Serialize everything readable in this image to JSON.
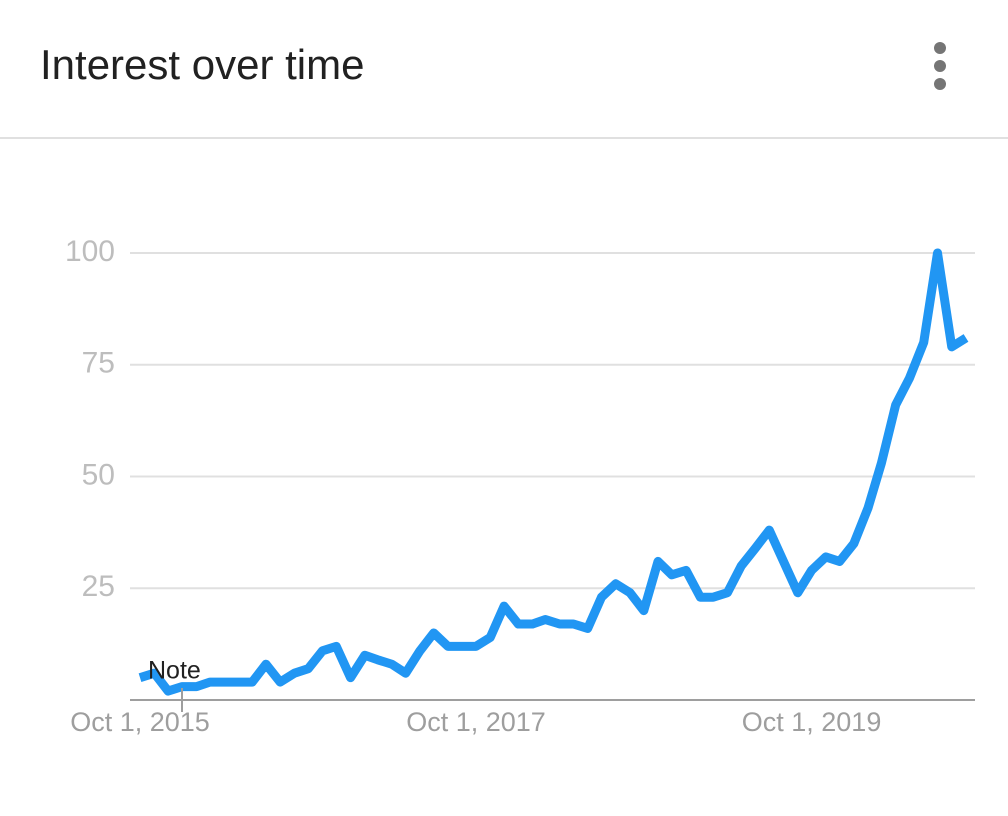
{
  "chart_data": {
    "type": "line",
    "title": "Interest over time",
    "annotation": "Note",
    "x": [
      "2015-10-01",
      "2015-11-01",
      "2015-12-01",
      "2016-01-01",
      "2016-02-01",
      "2016-03-01",
      "2016-04-01",
      "2016-05-01",
      "2016-06-01",
      "2016-07-01",
      "2016-08-01",
      "2016-09-01",
      "2016-10-01",
      "2016-11-01",
      "2016-12-01",
      "2017-01-01",
      "2017-02-01",
      "2017-03-01",
      "2017-04-01",
      "2017-05-01",
      "2017-06-01",
      "2017-07-01",
      "2017-08-01",
      "2017-09-01",
      "2017-10-01",
      "2017-11-01",
      "2017-12-01",
      "2018-01-01",
      "2018-02-01",
      "2018-03-01",
      "2018-04-01",
      "2018-05-01",
      "2018-06-01",
      "2018-07-01",
      "2018-08-01",
      "2018-09-01",
      "2018-10-01",
      "2018-11-01",
      "2018-12-01",
      "2019-01-01",
      "2019-02-01",
      "2019-03-01",
      "2019-04-01",
      "2019-05-01",
      "2019-06-01",
      "2019-07-01",
      "2019-08-01",
      "2019-09-01",
      "2019-10-01",
      "2019-11-01",
      "2019-12-01",
      "2020-01-01",
      "2020-02-01",
      "2020-03-01",
      "2020-04-01",
      "2020-05-01",
      "2020-06-01",
      "2020-07-01",
      "2020-08-01",
      "2020-09-01"
    ],
    "series": [
      {
        "color": "#2196f3",
        "values": [
          5,
          6,
          2,
          3,
          3,
          4,
          4,
          4,
          4,
          8,
          4,
          6,
          7,
          11,
          12,
          5,
          10,
          9,
          8,
          6,
          11,
          15,
          12,
          12,
          12,
          14,
          21,
          17,
          17,
          18,
          17,
          17,
          16,
          23,
          26,
          24,
          20,
          31,
          28,
          29,
          23,
          23,
          24,
          30,
          34,
          38,
          31,
          24,
          29,
          32,
          31,
          35,
          43,
          53,
          66,
          72,
          80,
          100,
          79,
          81
        ]
      }
    ],
    "xlim": [
      "2015-10-01",
      "2020-09-01"
    ],
    "xticks": [
      {
        "value": "2015-10-01",
        "label": "Oct 1, 2015"
      },
      {
        "value": "2017-10-01",
        "label": "Oct 1, 2017"
      },
      {
        "value": "2019-10-01",
        "label": "Oct 1, 2019"
      }
    ],
    "ylim": [
      0,
      100
    ],
    "yticks": [
      25,
      50,
      75,
      100
    ],
    "grid": true
  }
}
